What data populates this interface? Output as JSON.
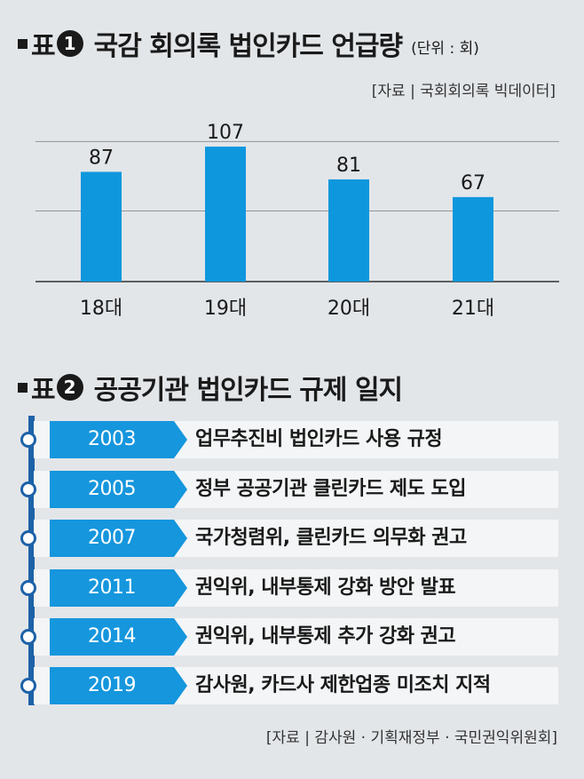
{
  "chart1_title": {
    "prefix": "표",
    "number": "1",
    "text": "국감 회의록 법인카드 언급량",
    "unit": "(단위 : 회)"
  },
  "chart_data": {
    "type": "bar",
    "categories": [
      "18대",
      "19대",
      "20대",
      "21대"
    ],
    "values": [
      87,
      107,
      81,
      67
    ],
    "ylim": [
      0,
      120
    ],
    "grid": true,
    "bar_color": "#0f97dd",
    "source": "[자료 | 국회회의록 빅데이터]"
  },
  "chart2_title": {
    "prefix": "표",
    "number": "2",
    "text": "공공기관 법인카드 규제 일지"
  },
  "timeline": {
    "accent_color": "#1596dd",
    "line_color": "#1d62a8",
    "items": [
      {
        "year": "2003",
        "event": "업무추진비 법인카드 사용 규정"
      },
      {
        "year": "2005",
        "event": "정부 공공기관 클린카드 제도 도입"
      },
      {
        "year": "2007",
        "event": "국가청렴위, 클린카드 의무화 권고"
      },
      {
        "year": "2011",
        "event": "권익위, 내부통제 강화 방안 발표"
      },
      {
        "year": "2014",
        "event": "권익위, 내부통제 추가 강화 권고"
      },
      {
        "year": "2019",
        "event": "감사원, 카드사 제한업종 미조치 지적"
      }
    ],
    "source": "[자료 | 감사원 · 기획재정부 · 국민권익위원회]"
  }
}
